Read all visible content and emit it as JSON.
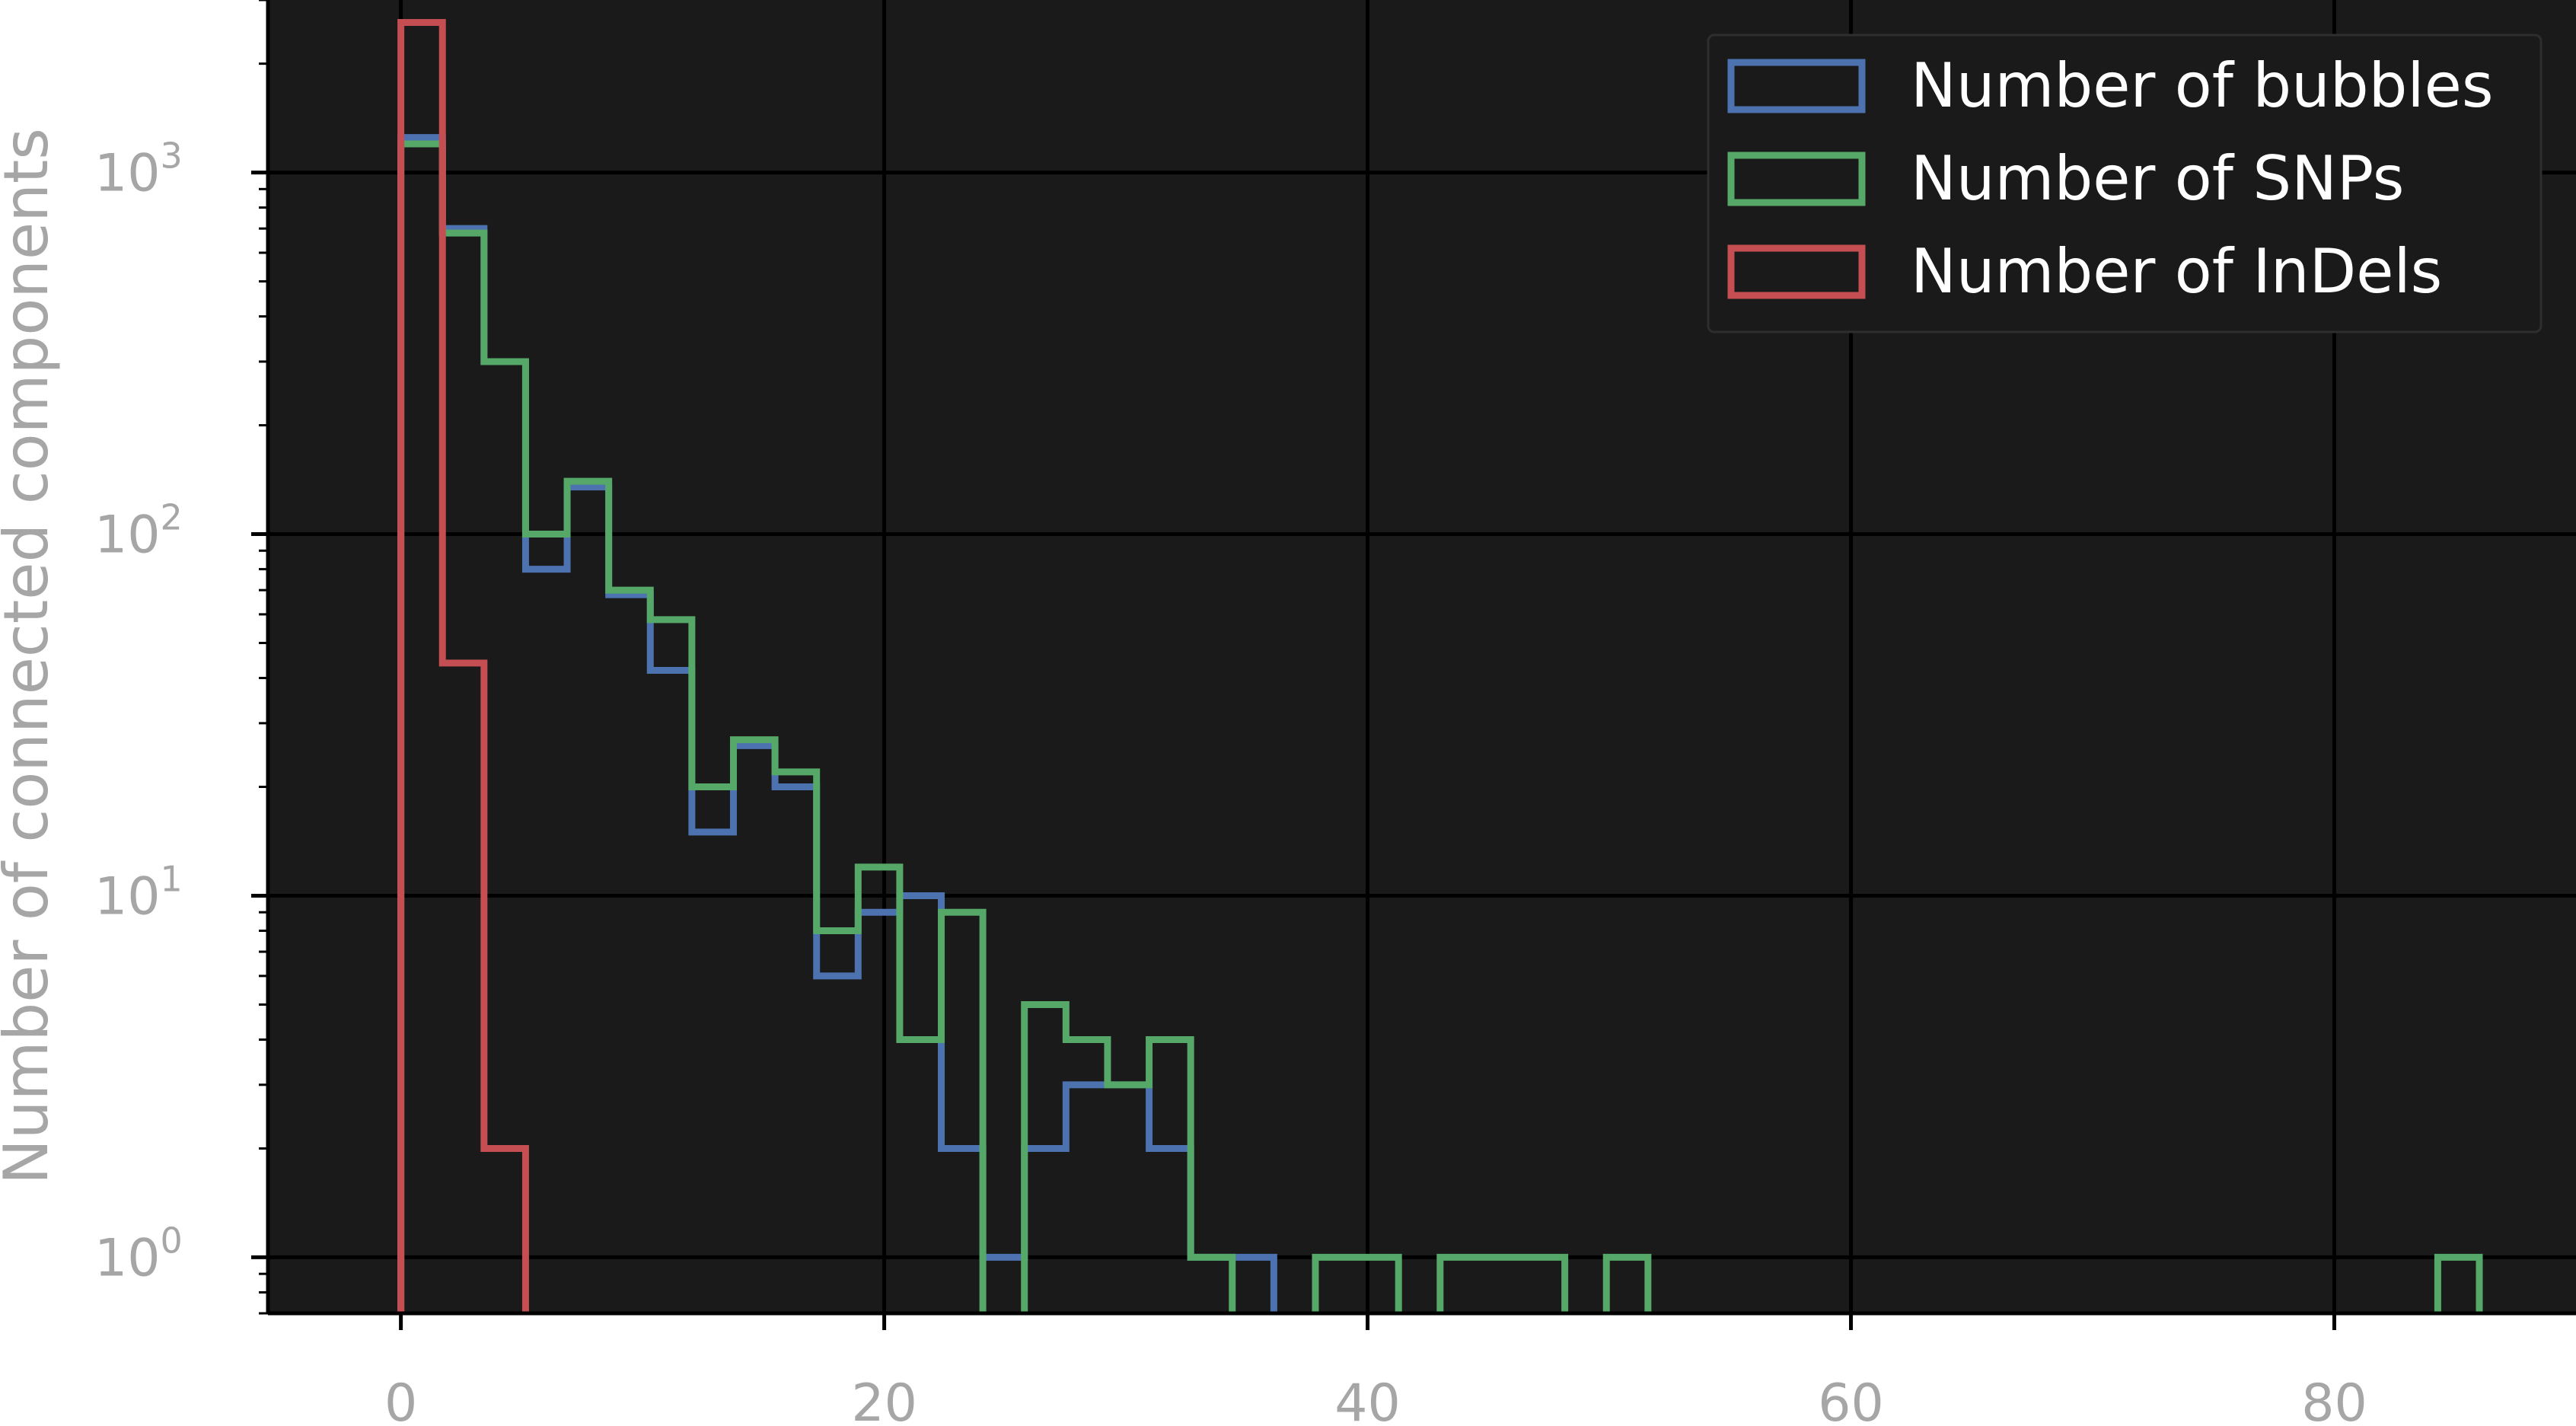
{
  "chart_data": {
    "type": "histogram",
    "title": "",
    "xlabel": "",
    "ylabel": "Number of connected components",
    "yscale": "log",
    "xlim": [
      -5.5,
      90.0
    ],
    "ylim": [
      0.7,
      3000
    ],
    "xticks": [
      0,
      20,
      40,
      60,
      80
    ],
    "xtick_labels": [
      "0",
      "20",
      "40",
      "60",
      "80"
    ],
    "yticks": [
      1,
      10,
      100,
      1000
    ],
    "ytick_labels": [
      {
        "base": "10",
        "exp": "0"
      },
      {
        "base": "10",
        "exp": "1"
      },
      {
        "base": "10",
        "exp": "2"
      },
      {
        "base": "10",
        "exp": "3"
      }
    ],
    "grid": true,
    "legend_position": "top-right",
    "background_color": "#1a1a1a",
    "grid_color": "#000000",
    "series": [
      {
        "name": "Number of bubbles",
        "color": "#4c72b0",
        "bins": [
          [
            0,
            1.72,
            1250
          ],
          [
            1.72,
            3.44,
            700
          ],
          [
            3.44,
            5.16,
            300
          ],
          [
            5.16,
            6.88,
            80
          ],
          [
            6.88,
            8.6,
            135
          ],
          [
            8.6,
            10.32,
            68
          ],
          [
            10.32,
            12.04,
            42
          ],
          [
            12.04,
            13.76,
            15
          ],
          [
            13.76,
            15.48,
            26
          ],
          [
            15.48,
            17.2,
            20
          ],
          [
            17.2,
            18.92,
            6
          ],
          [
            18.92,
            20.64,
            9
          ],
          [
            20.64,
            22.36,
            10
          ],
          [
            22.36,
            24.08,
            2
          ],
          [
            24.08,
            25.8,
            1
          ],
          [
            25.8,
            27.52,
            2
          ],
          [
            27.52,
            29.24,
            3
          ],
          [
            29.24,
            30.96,
            3
          ],
          [
            30.96,
            32.68,
            2
          ],
          [
            32.68,
            34.4,
            1
          ],
          [
            34.4,
            36.12,
            1
          ]
        ]
      },
      {
        "name": "Number of SNPs",
        "color": "#55a868",
        "bins": [
          [
            0,
            1.72,
            1200
          ],
          [
            1.72,
            3.44,
            680
          ],
          [
            3.44,
            5.16,
            300
          ],
          [
            5.16,
            6.88,
            100
          ],
          [
            6.88,
            8.6,
            140
          ],
          [
            8.6,
            10.32,
            70
          ],
          [
            10.32,
            12.04,
            58
          ],
          [
            12.04,
            13.76,
            20
          ],
          [
            13.76,
            15.48,
            27
          ],
          [
            15.48,
            17.2,
            22
          ],
          [
            17.2,
            18.92,
            8
          ],
          [
            18.92,
            20.64,
            12
          ],
          [
            20.64,
            22.36,
            4
          ],
          [
            22.36,
            24.08,
            9
          ],
          [
            24.08,
            25.8,
            0
          ],
          [
            25.8,
            27.52,
            5
          ],
          [
            27.52,
            29.24,
            4
          ],
          [
            29.24,
            30.96,
            3
          ],
          [
            30.96,
            32.68,
            4
          ],
          [
            32.68,
            34.4,
            1
          ],
          [
            34.4,
            36.12,
            0
          ],
          [
            36.12,
            37.84,
            0
          ],
          [
            37.84,
            39.56,
            1
          ],
          [
            39.56,
            41.28,
            1
          ],
          [
            41.28,
            43.0,
            0
          ],
          [
            43.0,
            44.72,
            1
          ],
          [
            44.72,
            46.44,
            1
          ],
          [
            46.44,
            48.16,
            1
          ],
          [
            48.16,
            49.88,
            0
          ],
          [
            49.88,
            51.6,
            1
          ],
          [
            84.28,
            86.0,
            1
          ]
        ]
      },
      {
        "name": "Number of InDels",
        "color": "#c44e52",
        "bins": [
          [
            0,
            1.72,
            2600
          ],
          [
            1.72,
            3.44,
            44
          ],
          [
            3.44,
            5.16,
            2
          ]
        ]
      }
    ]
  }
}
